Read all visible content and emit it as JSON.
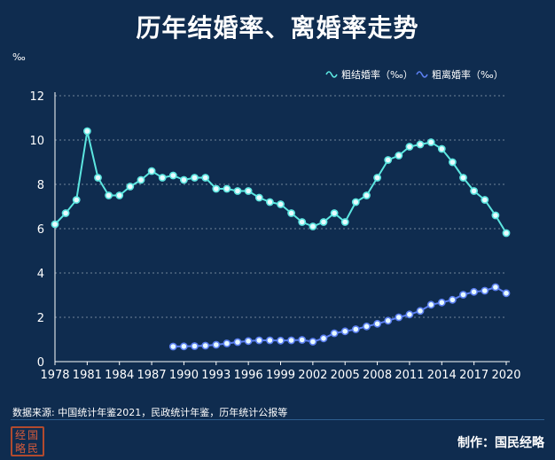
{
  "title": "历年结婚率、离婚率走势",
  "source": "数据来源: 中国统计年鉴2021，民政统计年鉴，历年统计公报等",
  "credit": "制作：国民经略",
  "logo_text": "经国略民",
  "colors": {
    "background": "#0f2c4f",
    "marriage": "#5ce6e0",
    "divorce": "#5b7ff0",
    "grid": "#9aa8b8"
  },
  "chart_data": {
    "type": "line",
    "ylabel": "‰",
    "ylim": [
      0,
      12
    ],
    "yticks": [
      0,
      2,
      4,
      6,
      8,
      10,
      12
    ],
    "xlim": [
      1978,
      2020
    ],
    "xticks": [
      1978,
      1981,
      1984,
      1987,
      1990,
      1993,
      1996,
      1999,
      2002,
      2005,
      2008,
      2011,
      2014,
      2017,
      2020
    ],
    "grid": "horizontal dashed",
    "legend_position": "top-right",
    "series": [
      {
        "name": "粗结婚率（‰）",
        "x": [
          1978,
          1979,
          1980,
          1981,
          1982,
          1983,
          1984,
          1985,
          1986,
          1987,
          1988,
          1989,
          1990,
          1991,
          1992,
          1993,
          1994,
          1995,
          1996,
          1997,
          1998,
          1999,
          2000,
          2001,
          2002,
          2003,
          2004,
          2005,
          2006,
          2007,
          2008,
          2009,
          2010,
          2011,
          2012,
          2013,
          2014,
          2015,
          2016,
          2017,
          2018,
          2019,
          2020
        ],
        "values": [
          6.2,
          6.7,
          7.3,
          10.4,
          8.3,
          7.5,
          7.5,
          7.9,
          8.2,
          8.6,
          8.3,
          8.4,
          8.2,
          8.3,
          8.3,
          7.8,
          7.8,
          7.7,
          7.7,
          7.4,
          7.2,
          7.1,
          6.7,
          6.3,
          6.1,
          6.3,
          6.7,
          6.3,
          7.2,
          7.5,
          8.3,
          9.1,
          9.3,
          9.7,
          9.8,
          9.9,
          9.6,
          9.0,
          8.3,
          7.7,
          7.3,
          6.6,
          5.8
        ]
      },
      {
        "name": "粗离婚率（‰）",
        "x": [
          1989,
          1990,
          1991,
          1992,
          1993,
          1994,
          1995,
          1996,
          1997,
          1998,
          1999,
          2000,
          2001,
          2002,
          2003,
          2004,
          2005,
          2006,
          2007,
          2008,
          2009,
          2010,
          2011,
          2012,
          2013,
          2014,
          2015,
          2016,
          2017,
          2018,
          2019,
          2020
        ],
        "values": [
          0.68,
          0.69,
          0.7,
          0.72,
          0.76,
          0.82,
          0.88,
          0.93,
          0.96,
          0.96,
          0.95,
          0.96,
          0.98,
          0.9,
          1.05,
          1.28,
          1.37,
          1.46,
          1.59,
          1.71,
          1.85,
          2.0,
          2.13,
          2.29,
          2.57,
          2.67,
          2.79,
          3.02,
          3.15,
          3.2,
          3.36,
          3.09
        ]
      }
    ]
  }
}
